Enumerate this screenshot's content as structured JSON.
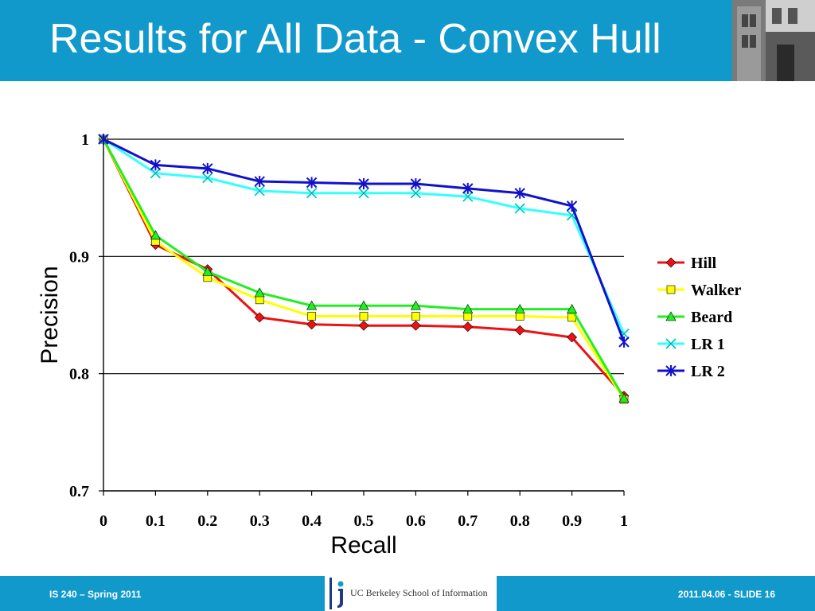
{
  "slide": {
    "title": "Results for All Data - Convex Hull",
    "footer_left": "IS 240 – Spring 2011",
    "footer_right": "2011.04.06 -  SLIDE 16",
    "logo_text": "UC Berkeley School of Information",
    "header_color": "#1199cc"
  },
  "chart_data": {
    "type": "line",
    "xlabel": "Recall",
    "ylabel": "Precision",
    "x": [
      0,
      0.1,
      0.2,
      0.3,
      0.4,
      0.5,
      0.6,
      0.7,
      0.8,
      0.9,
      1
    ],
    "x_tick_labels": [
      "0",
      "0.1",
      "0.2",
      "0.3",
      "0.4",
      "0.5",
      "0.6",
      "0.7",
      "0.8",
      "0.9",
      "1"
    ],
    "ylim": [
      0.7,
      1
    ],
    "y_ticks": [
      0.7,
      0.8,
      0.9,
      1
    ],
    "y_tick_labels": [
      "0.7",
      "0.8",
      "0.9",
      "1"
    ],
    "grid": "horizontal",
    "legend_position": "right",
    "series": [
      {
        "name": "Hill",
        "color": "#ee1111",
        "marker": "diamond",
        "values": [
          1.0,
          0.91,
          0.889,
          0.848,
          0.842,
          0.841,
          0.841,
          0.84,
          0.837,
          0.831,
          0.781
        ]
      },
      {
        "name": "Walker",
        "color": "#ffff00",
        "marker": "square",
        "values": [
          1.0,
          0.913,
          0.882,
          0.863,
          0.849,
          0.849,
          0.849,
          0.849,
          0.849,
          0.848,
          0.778
        ]
      },
      {
        "name": "Beard",
        "color": "#22ee22",
        "marker": "triangle",
        "values": [
          1.0,
          0.918,
          0.887,
          0.869,
          0.858,
          0.858,
          0.858,
          0.855,
          0.855,
          0.855,
          0.779
        ]
      },
      {
        "name": "LR 1",
        "color": "#33ffff",
        "marker": "x",
        "values": [
          1.0,
          0.971,
          0.967,
          0.956,
          0.954,
          0.954,
          0.954,
          0.951,
          0.941,
          0.935,
          0.834
        ]
      },
      {
        "name": "LR 2",
        "color": "#1111cc",
        "marker": "asterisk",
        "values": [
          1.0,
          0.978,
          0.975,
          0.964,
          0.963,
          0.962,
          0.962,
          0.958,
          0.954,
          0.943,
          0.827
        ]
      }
    ]
  }
}
